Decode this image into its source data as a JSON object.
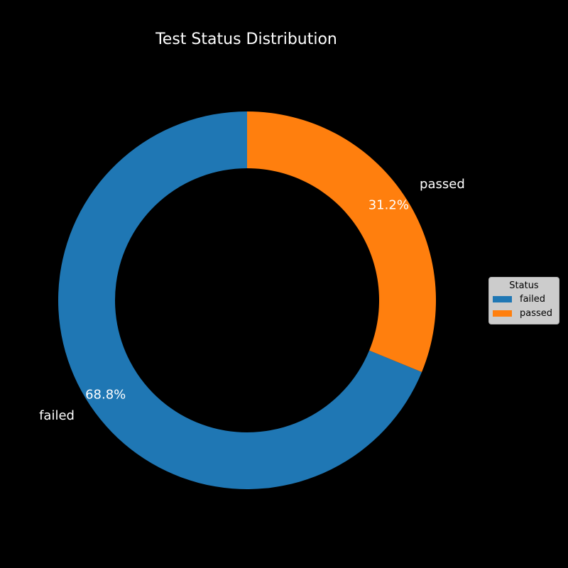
{
  "chart_data": {
    "type": "pie",
    "style": "donut",
    "title": "Test Status Distribution",
    "categories": [
      "failed",
      "passed"
    ],
    "values": [
      68.8,
      31.2
    ],
    "value_labels": [
      "68.8%",
      "31.2%"
    ],
    "colors": [
      "#1f77b4",
      "#ff7f0e"
    ],
    "start_angle_deg": 90,
    "direction": "counterclockwise",
    "legend": {
      "title": "Status",
      "placement": "center-right",
      "items": [
        "failed",
        "passed"
      ]
    }
  }
}
